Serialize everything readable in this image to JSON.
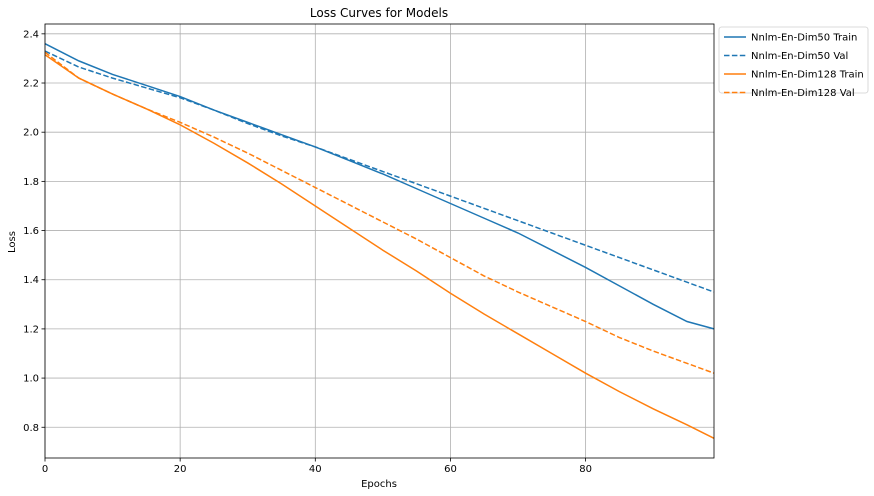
{
  "chart_data": {
    "type": "line",
    "title": "Loss Curves for Models",
    "xlabel": "Epochs",
    "ylabel": "Loss",
    "xlim": [
      0,
      99
    ],
    "ylim": [
      0.675,
      2.44
    ],
    "xticks": [
      0,
      20,
      40,
      60,
      80
    ],
    "yticks": [
      0.8,
      1.0,
      1.2,
      1.4,
      1.6,
      1.8,
      2.0,
      2.2,
      2.4
    ],
    "grid": true,
    "legend_position": "outside-top-right",
    "x": [
      0,
      5,
      10,
      15,
      20,
      25,
      30,
      35,
      40,
      45,
      50,
      55,
      60,
      65,
      70,
      75,
      80,
      85,
      90,
      95,
      99
    ],
    "series": [
      {
        "name": "Nnlm-En-Dim50 Train",
        "color": "#1f77b4",
        "style": "solid",
        "values": [
          2.36,
          2.29,
          2.235,
          2.19,
          2.145,
          2.09,
          2.04,
          1.99,
          1.94,
          1.885,
          1.83,
          1.77,
          1.71,
          1.65,
          1.59,
          1.52,
          1.45,
          1.375,
          1.3,
          1.23,
          1.2
        ]
      },
      {
        "name": "Nnlm-En-Dim50 Val",
        "color": "#1f77b4",
        "style": "dashed",
        "values": [
          2.33,
          2.265,
          2.22,
          2.18,
          2.14,
          2.09,
          2.035,
          1.985,
          1.94,
          1.89,
          1.84,
          1.79,
          1.74,
          1.69,
          1.64,
          1.59,
          1.54,
          1.49,
          1.44,
          1.39,
          1.35
        ]
      },
      {
        "name": "Nnlm-En-Dim128 Train",
        "color": "#ff7f0e",
        "style": "solid",
        "values": [
          2.315,
          2.22,
          2.155,
          2.095,
          2.03,
          1.955,
          1.875,
          1.79,
          1.7,
          1.61,
          1.52,
          1.435,
          1.345,
          1.26,
          1.18,
          1.1,
          1.02,
          0.945,
          0.875,
          0.81,
          0.755
        ]
      },
      {
        "name": "Nnlm-En-Dim128 Val",
        "color": "#ff7f0e",
        "style": "dashed",
        "values": [
          2.325,
          2.22,
          2.155,
          2.095,
          2.04,
          1.98,
          1.915,
          1.845,
          1.775,
          1.705,
          1.635,
          1.565,
          1.49,
          1.415,
          1.35,
          1.29,
          1.23,
          1.165,
          1.11,
          1.06,
          1.02
        ]
      }
    ]
  }
}
